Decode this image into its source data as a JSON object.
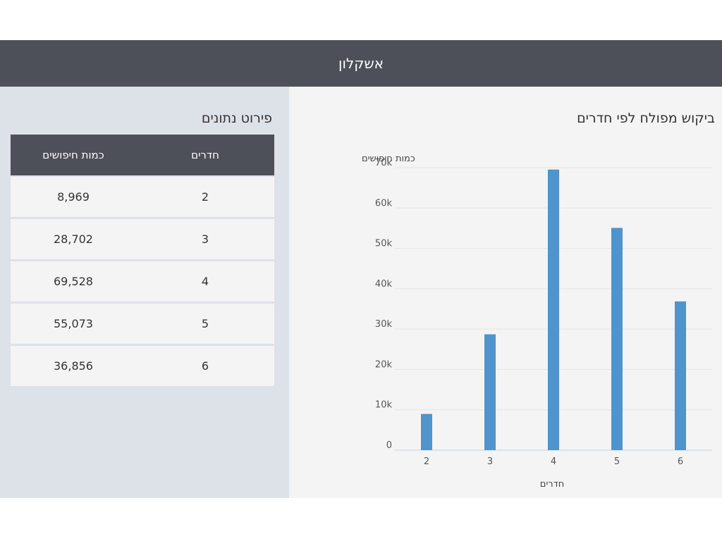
{
  "header": {
    "title": "אשקלון"
  },
  "table": {
    "title": "פירוט נתונים",
    "headers": {
      "rooms": "חדרים",
      "count": "כמות חיפושים"
    },
    "rows": [
      {
        "rooms": "2",
        "count": "8,969"
      },
      {
        "rooms": "3",
        "count": "28,702"
      },
      {
        "rooms": "4",
        "count": "69,528"
      },
      {
        "rooms": "5",
        "count": "55,073"
      },
      {
        "rooms": "6",
        "count": "36,856"
      }
    ]
  },
  "chart_data": {
    "type": "bar",
    "title": "ביקוש מפולח לפי חדרים",
    "xlabel": "חדרים",
    "ylabel": "כמות חיפושים",
    "categories": [
      "2",
      "3",
      "4",
      "5",
      "6"
    ],
    "values": [
      8969,
      28702,
      69528,
      55073,
      36856
    ],
    "ylim": [
      0,
      70000
    ],
    "yticks": [
      "0",
      "10k",
      "20k",
      "30k",
      "40k",
      "50k",
      "60k",
      "70k"
    ],
    "bar_color": "#4f94cc",
    "grid": true
  }
}
